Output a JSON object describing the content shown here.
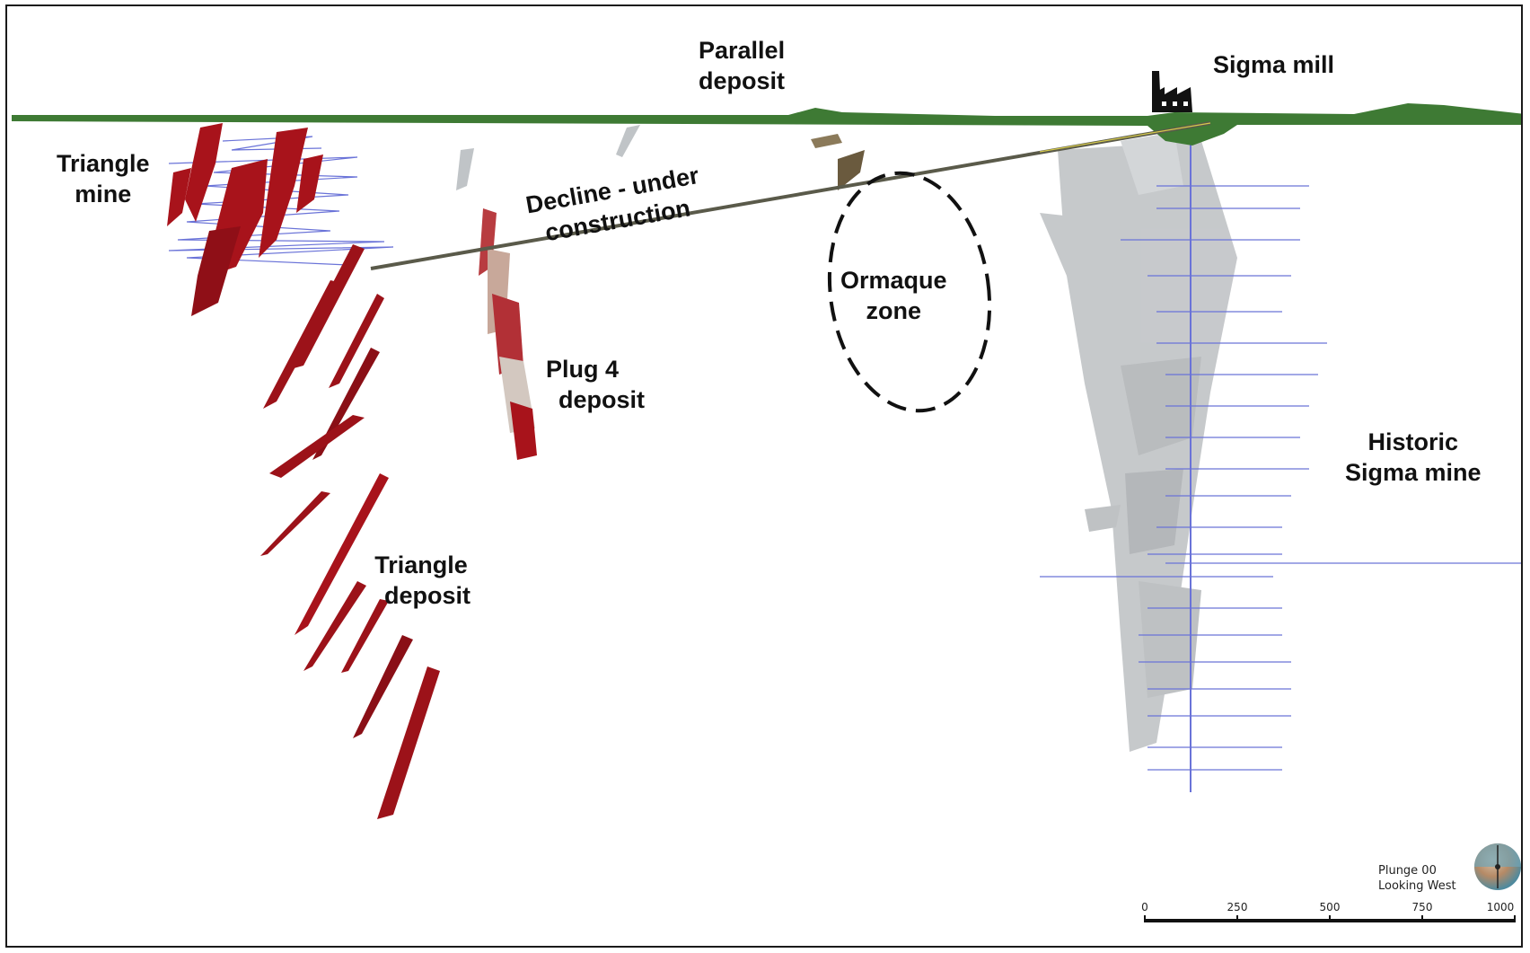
{
  "labels": {
    "parallel_deposit": [
      "Parallel",
      "deposit"
    ],
    "sigma_mill": "Sigma mill",
    "triangle_mine": [
      "Triangle",
      "mine"
    ],
    "decline": [
      "Decline - under",
      "construction"
    ],
    "ormaque_zone": [
      "Ormaque",
      "zone"
    ],
    "plug4_deposit": [
      "Plug 4",
      "deposit"
    ],
    "historic_sigma_mine": [
      "Historic",
      "Sigma mine"
    ],
    "triangle_deposit": [
      "Triangle",
      "deposit"
    ]
  },
  "view": {
    "plunge": "Plunge 00",
    "direction": "Looking West"
  },
  "scale_bar": {
    "ticks": [
      "0",
      "250",
      "500",
      "750",
      "1000"
    ]
  },
  "colors": {
    "surface": "#3e7a34",
    "orebody": "#a8131b",
    "workings": "#6a73d8",
    "decline": "#5a5a4a"
  },
  "icons": {
    "mill": "factory-icon",
    "orientation": "orientation-sphere-icon"
  }
}
